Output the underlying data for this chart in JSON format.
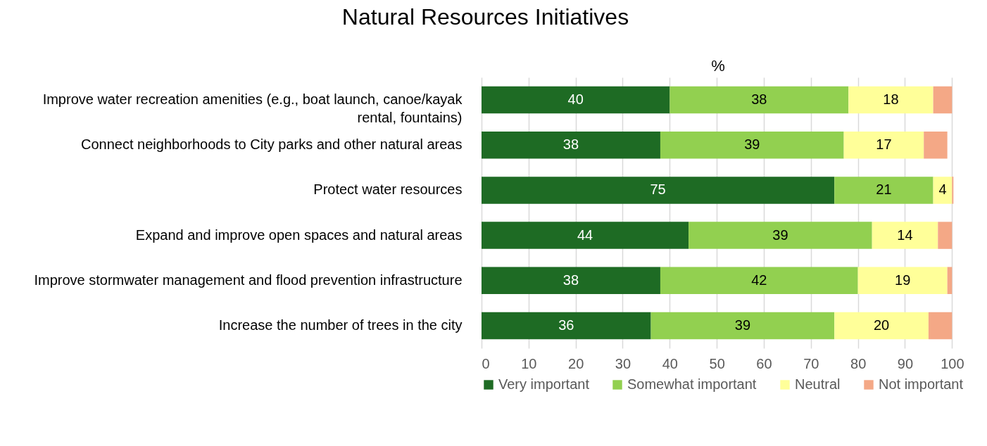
{
  "chart_data": {
    "type": "bar",
    "orientation": "horizontal",
    "stacked": true,
    "title": "Natural Resources Initiatives",
    "xlabel": "%",
    "categories": [
      "Improve water recreation amenities (e.g., boat launch, canoe/kayak rental, fountains)",
      "Connect neighborhoods to City parks and other natural areas",
      "Protect water resources",
      "Expand and improve open spaces and natural areas",
      "Improve stormwater management and flood prevention infrastructure",
      "Increase the number of trees in the city"
    ],
    "series": [
      {
        "name": "Very important",
        "color": "#1e6b24",
        "values": [
          40,
          38,
          75,
          44,
          38,
          36
        ],
        "value_labels": [
          "40",
          "38",
          "75",
          "44",
          "38",
          "36"
        ]
      },
      {
        "name": "Somewhat important",
        "color": "#92d050",
        "values": [
          38,
          39,
          21,
          39,
          42,
          39
        ],
        "value_labels": [
          "38",
          "39",
          "21",
          "39",
          "42",
          "39"
        ]
      },
      {
        "name": "Neutral",
        "color": "#ffff99",
        "values": [
          18,
          17,
          4,
          14,
          19,
          20
        ],
        "value_labels": [
          "18",
          "17",
          "4",
          "14",
          "19",
          "20"
        ]
      },
      {
        "name": "Not important",
        "color": "#f4a886",
        "values": [
          4,
          5,
          0.3,
          3,
          1,
          5
        ]
      }
    ],
    "xlim": [
      0,
      100.4
    ],
    "xticks": [
      0,
      10,
      20,
      30,
      40,
      50,
      60,
      70,
      80,
      90,
      100
    ],
    "grid": "x",
    "legend": "bottom"
  }
}
